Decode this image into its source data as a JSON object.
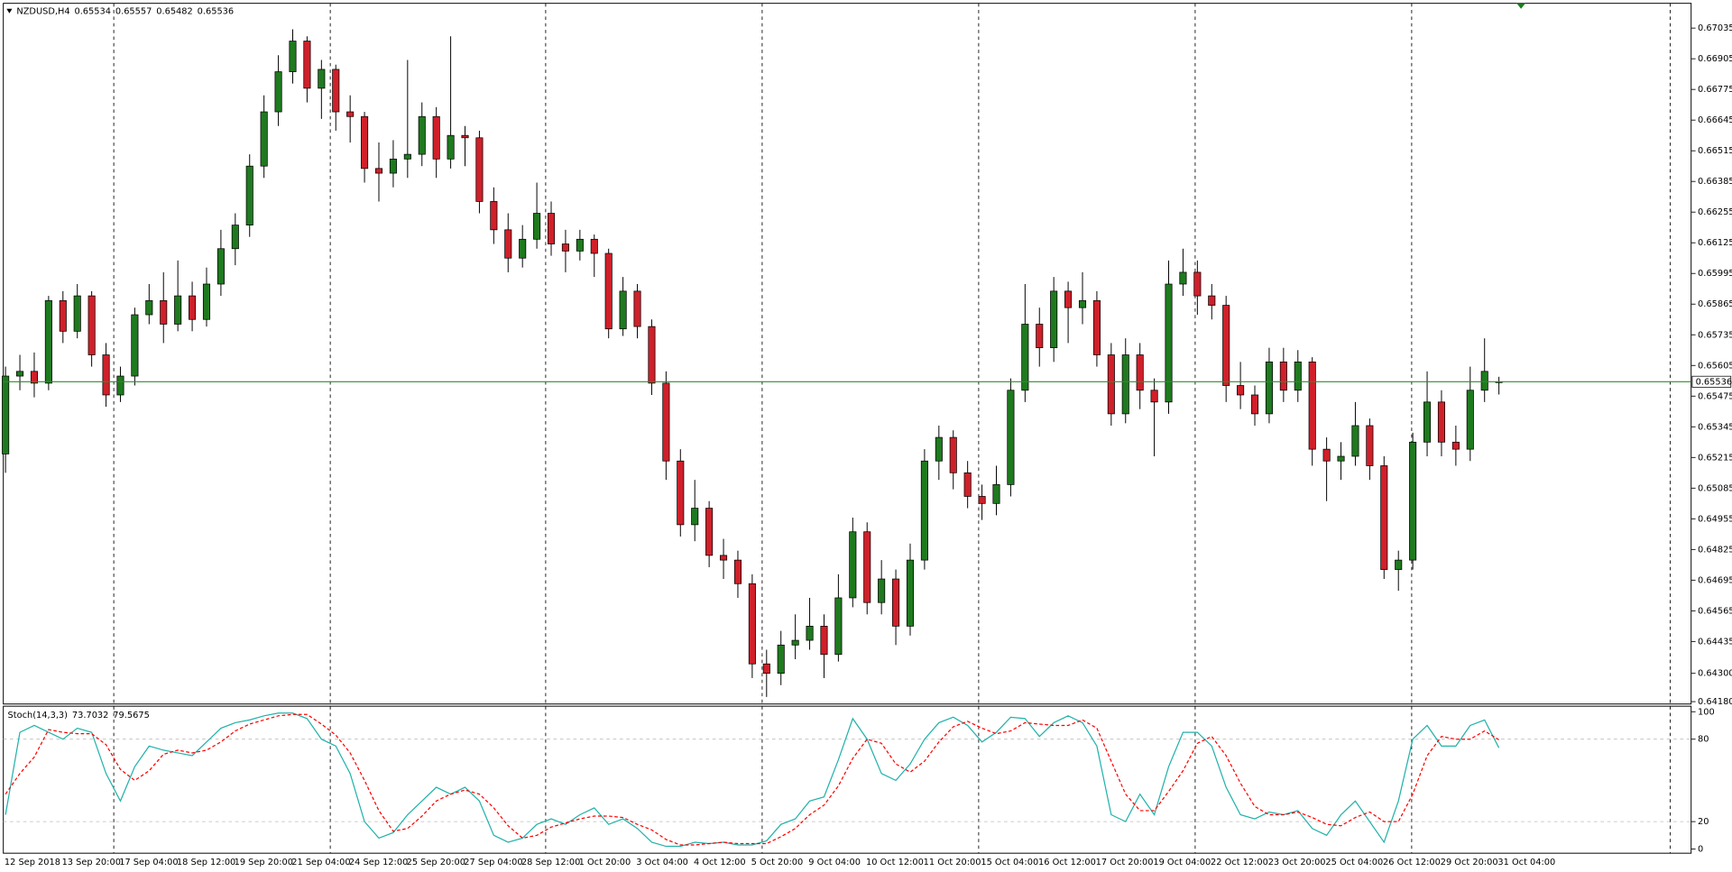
{
  "chart_data": [
    {
      "type": "candlestick",
      "title": "NZDUSD,H4",
      "header_values": [
        0.65534,
        0.65557,
        0.65482,
        0.65536
      ],
      "bull_color": "#1f7a1f",
      "bear_color": "#d0202a",
      "current_price": 0.65536,
      "current_color": "#2e8b2e",
      "ylim": [
        0.6417,
        0.6714
      ],
      "yticks": [
        0.67035,
        0.66905,
        0.66775,
        0.66645,
        0.66515,
        0.66385,
        0.66255,
        0.66125,
        0.65995,
        0.65865,
        0.65735,
        0.65605,
        0.65475,
        0.65345,
        0.65215,
        0.65085,
        0.64955,
        0.64825,
        0.64695,
        0.64565,
        0.64435,
        {
          "value": 0.643,
          "label": "0.64300"
        },
        {
          "value": 0.6418,
          "label": "0.64180"
        }
      ],
      "categories": [
        "12 Sep 2018",
        null,
        null,
        null,
        "13 Sep 20:00",
        null,
        null,
        null,
        "17 Sep 04:00",
        null,
        null,
        null,
        "18 Sep 12:00",
        null,
        null,
        null,
        "19 Sep 20:00",
        null,
        null,
        null,
        "21 Sep 04:00",
        null,
        null,
        null,
        "24 Sep 12:00",
        null,
        null,
        null,
        "25 Sep 20:00",
        null,
        null,
        null,
        "27 Sep 04:00",
        null,
        null,
        null,
        "28 Sep 12:00",
        null,
        null,
        null,
        "1 Oct 20:00",
        null,
        null,
        null,
        "3 Oct 04:00",
        null,
        null,
        null,
        "4 Oct 12:00",
        null,
        null,
        null,
        "5 Oct 20:00",
        null,
        null,
        null,
        "9 Oct 04:00",
        null,
        null,
        null,
        "10 Oct 12:00",
        null,
        null,
        null,
        "11 Oct 20:00",
        null,
        null,
        null,
        "15 Oct 04:00",
        null,
        null,
        null,
        "16 Oct 12:00",
        null,
        null,
        null,
        "17 Oct 20:00",
        null,
        null,
        null,
        "19 Oct 04:00",
        null,
        null,
        null,
        "22 Oct 12:00",
        null,
        null,
        null,
        "23 Oct 20:00",
        null,
        null,
        null,
        "25 Oct 04:00",
        null,
        null,
        null,
        "26 Oct 12:00",
        null,
        null,
        null,
        "29 Oct 20:00",
        null,
        null,
        null,
        "31 Oct 04:00"
      ],
      "candles": [
        [
          0.6523,
          0.656,
          0.6515,
          0.6556
        ],
        [
          0.6556,
          0.6565,
          0.655,
          0.6558
        ],
        [
          0.6558,
          0.6566,
          0.6547,
          0.6553
        ],
        [
          0.6553,
          0.659,
          0.655,
          0.6588
        ],
        [
          0.6588,
          0.6592,
          0.657,
          0.6575
        ],
        [
          0.6575,
          0.6595,
          0.6572,
          0.659
        ],
        [
          0.659,
          0.6592,
          0.656,
          0.6565
        ],
        [
          0.6565,
          0.657,
          0.6543,
          0.6548
        ],
        [
          0.6548,
          0.656,
          0.6545,
          0.6556
        ],
        [
          0.6556,
          0.6585,
          0.6552,
          0.6582
        ],
        [
          0.6582,
          0.6595,
          0.6578,
          0.6588
        ],
        [
          0.6588,
          0.66,
          0.657,
          0.6578
        ],
        [
          0.6578,
          0.6605,
          0.6575,
          0.659
        ],
        [
          0.659,
          0.6596,
          0.6575,
          0.658
        ],
        [
          0.658,
          0.6602,
          0.6577,
          0.6595
        ],
        [
          0.6595,
          0.6618,
          0.659,
          0.661
        ],
        [
          0.661,
          0.6625,
          0.6603,
          0.662
        ],
        [
          0.662,
          0.665,
          0.6615,
          0.6645
        ],
        [
          0.6645,
          0.6675,
          0.664,
          0.6668
        ],
        [
          0.6668,
          0.6692,
          0.6662,
          0.6685
        ],
        [
          0.6685,
          0.6703,
          0.668,
          0.6698
        ],
        [
          0.6698,
          0.67,
          0.6672,
          0.6678
        ],
        [
          0.6678,
          0.669,
          0.6665,
          0.6686
        ],
        [
          0.6686,
          0.6688,
          0.666,
          0.6668
        ],
        [
          0.6668,
          0.6675,
          0.6655,
          0.6666
        ],
        [
          0.6666,
          0.6668,
          0.6638,
          0.6644
        ],
        [
          0.6644,
          0.6655,
          0.663,
          0.6642
        ],
        [
          0.6642,
          0.6656,
          0.6636,
          0.6648
        ],
        [
          0.6648,
          0.669,
          0.664,
          0.665
        ],
        [
          0.665,
          0.6672,
          0.6645,
          0.6666
        ],
        [
          0.6666,
          0.667,
          0.664,
          0.6648
        ],
        [
          0.6648,
          0.67,
          0.6644,
          0.6658
        ],
        [
          0.6658,
          0.6662,
          0.6645,
          0.6657
        ],
        [
          0.6657,
          0.666,
          0.6625,
          0.663
        ],
        [
          0.663,
          0.6636,
          0.6612,
          0.6618
        ],
        [
          0.6618,
          0.6625,
          0.66,
          0.6606
        ],
        [
          0.6606,
          0.662,
          0.6602,
          0.6614
        ],
        [
          0.6614,
          0.6638,
          0.661,
          0.6625
        ],
        [
          0.6625,
          0.663,
          0.6607,
          0.6612
        ],
        [
          0.6612,
          0.6618,
          0.66,
          0.6609
        ],
        [
          0.6609,
          0.6618,
          0.6605,
          0.6614
        ],
        [
          0.6614,
          0.6616,
          0.6598,
          0.6608
        ],
        [
          0.6608,
          0.661,
          0.6572,
          0.6576
        ],
        [
          0.6576,
          0.6598,
          0.6573,
          0.6592
        ],
        [
          0.6592,
          0.6595,
          0.6572,
          0.6577
        ],
        [
          0.6577,
          0.658,
          0.6548,
          0.6553
        ],
        [
          0.6553,
          0.6558,
          0.6512,
          0.652
        ],
        [
          0.652,
          0.6525,
          0.6488,
          0.6493
        ],
        [
          0.6493,
          0.6512,
          0.6486,
          0.65
        ],
        [
          0.65,
          0.6503,
          0.6475,
          0.648
        ],
        [
          0.648,
          0.6487,
          0.647,
          0.6478
        ],
        [
          0.6478,
          0.6482,
          0.6462,
          0.6468
        ],
        [
          0.6468,
          0.6472,
          0.6428,
          0.6434
        ],
        [
          0.6434,
          0.644,
          0.642,
          0.643
        ],
        [
          0.643,
          0.6448,
          0.6425,
          0.6442
        ],
        [
          0.6442,
          0.6455,
          0.6436,
          0.6444
        ],
        [
          0.6444,
          0.6462,
          0.644,
          0.645
        ],
        [
          0.645,
          0.6455,
          0.6428,
          0.6438
        ],
        [
          0.6438,
          0.6472,
          0.6435,
          0.6462
        ],
        [
          0.6462,
          0.6496,
          0.6458,
          0.649
        ],
        [
          0.649,
          0.6494,
          0.6455,
          0.646
        ],
        [
          0.646,
          0.6478,
          0.6455,
          0.647
        ],
        [
          0.647,
          0.6474,
          0.6442,
          0.645
        ],
        [
          0.645,
          0.6485,
          0.6446,
          0.6478
        ],
        [
          0.6478,
          0.6525,
          0.6474,
          0.652
        ],
        [
          0.652,
          0.6535,
          0.6512,
          0.653
        ],
        [
          0.653,
          0.6533,
          0.6508,
          0.6515
        ],
        [
          0.6515,
          0.652,
          0.65,
          0.6505
        ],
        [
          0.6505,
          0.651,
          0.6495,
          0.6502
        ],
        [
          0.6502,
          0.6518,
          0.6497,
          0.651
        ],
        [
          0.651,
          0.6555,
          0.6505,
          0.655
        ],
        [
          0.655,
          0.6595,
          0.6545,
          0.6578
        ],
        [
          0.6578,
          0.6585,
          0.656,
          0.6568
        ],
        [
          0.6568,
          0.6598,
          0.6562,
          0.6592
        ],
        [
          0.6592,
          0.6596,
          0.657,
          0.6585
        ],
        [
          0.6585,
          0.66,
          0.6578,
          0.6588
        ],
        [
          0.6588,
          0.6592,
          0.656,
          0.6565
        ],
        [
          0.6565,
          0.657,
          0.6535,
          0.654
        ],
        [
          0.654,
          0.6572,
          0.6536,
          0.6565
        ],
        [
          0.6565,
          0.657,
          0.6542,
          0.655
        ],
        [
          0.655,
          0.6555,
          0.6522,
          0.6545
        ],
        [
          0.6545,
          0.6605,
          0.654,
          0.6595
        ],
        [
          0.6595,
          0.661,
          0.659,
          0.66
        ],
        [
          0.66,
          0.6605,
          0.6582,
          0.659
        ],
        [
          0.659,
          0.6595,
          0.658,
          0.6586
        ],
        [
          0.6586,
          0.659,
          0.6545,
          0.6552
        ],
        [
          0.6552,
          0.6562,
          0.6542,
          0.6548
        ],
        [
          0.6548,
          0.6552,
          0.6535,
          0.654
        ],
        [
          0.654,
          0.6568,
          0.6536,
          0.6562
        ],
        [
          0.6562,
          0.6568,
          0.6545,
          0.655
        ],
        [
          0.655,
          0.6567,
          0.6545,
          0.6562
        ],
        [
          0.6562,
          0.6564,
          0.6518,
          0.6525
        ],
        [
          0.6525,
          0.653,
          0.6503,
          0.652
        ],
        [
          0.652,
          0.6528,
          0.6512,
          0.6522
        ],
        [
          0.6522,
          0.6545,
          0.6518,
          0.6535
        ],
        [
          0.6535,
          0.6538,
          0.6512,
          0.6518
        ],
        [
          0.6518,
          0.6522,
          0.647,
          0.6474
        ],
        [
          0.6474,
          0.6482,
          0.6465,
          0.6478
        ],
        [
          0.6478,
          0.6532,
          0.6474,
          0.6528
        ],
        [
          0.6528,
          0.6558,
          0.6522,
          0.6545
        ],
        [
          0.6545,
          0.655,
          0.6522,
          0.6528
        ],
        [
          0.6528,
          0.6535,
          0.6518,
          0.6525
        ],
        [
          0.6525,
          0.656,
          0.652,
          0.655
        ],
        [
          0.655,
          0.6572,
          0.6545,
          0.6558
        ],
        [
          0.65534,
          0.65557,
          0.65482,
          0.65536
        ]
      ]
    },
    {
      "type": "line",
      "title": "Stoch(14,3,3)",
      "header_values": [
        73.7032,
        79.5675
      ],
      "ylim": [
        -3,
        104
      ],
      "yticks": [
        100,
        80,
        20,
        0
      ],
      "levels": [
        80,
        20
      ],
      "series": [
        {
          "color": "#20b2aa",
          "values": [
            25,
            85,
            90,
            85,
            80,
            88,
            85,
            55,
            35,
            60,
            75,
            72,
            70,
            68,
            78,
            88,
            92,
            94,
            97,
            99,
            99,
            95,
            80,
            75,
            55,
            20,
            8,
            12,
            25,
            35,
            45,
            40,
            45,
            35,
            10,
            5,
            8,
            18,
            22,
            18,
            25,
            30,
            18,
            22,
            15,
            5,
            2,
            2,
            5,
            4,
            5,
            3,
            3,
            6,
            18,
            22,
            35,
            38,
            65,
            95,
            80,
            55,
            50,
            62,
            80,
            92,
            96,
            90,
            78,
            85,
            96,
            95,
            82,
            92,
            97,
            92,
            75,
            25,
            20,
            40,
            25,
            60,
            85,
            85,
            75,
            45,
            25,
            22,
            27,
            25,
            28,
            15,
            10,
            25,
            35,
            20,
            5,
            35,
            80,
            90,
            75,
            75,
            90,
            94,
            73.7032
          ]
        },
        {
          "color": "#ff0000",
          "dashed": true,
          "values": [
            40,
            55,
            67,
            87,
            85,
            84,
            84,
            76,
            58,
            50,
            57,
            69,
            72,
            70,
            72,
            78,
            86,
            91,
            94,
            97,
            98,
            98,
            91,
            83,
            70,
            50,
            28,
            13,
            15,
            24,
            35,
            40,
            43,
            40,
            30,
            17,
            8,
            10,
            16,
            19,
            22,
            24,
            24,
            23,
            18,
            14,
            7,
            3,
            3,
            4,
            5,
            4,
            4,
            4,
            9,
            15,
            25,
            32,
            46,
            66,
            80,
            77,
            62,
            56,
            64,
            78,
            89,
            93,
            88,
            84,
            86,
            92,
            91,
            90,
            90,
            94,
            88,
            64,
            40,
            28,
            28,
            42,
            57,
            77,
            82,
            68,
            48,
            31,
            25,
            25,
            27,
            23,
            18,
            17,
            23,
            27,
            20,
            20,
            40,
            68,
            82,
            80,
            80,
            86,
            79.5675
          ]
        }
      ]
    }
  ]
}
